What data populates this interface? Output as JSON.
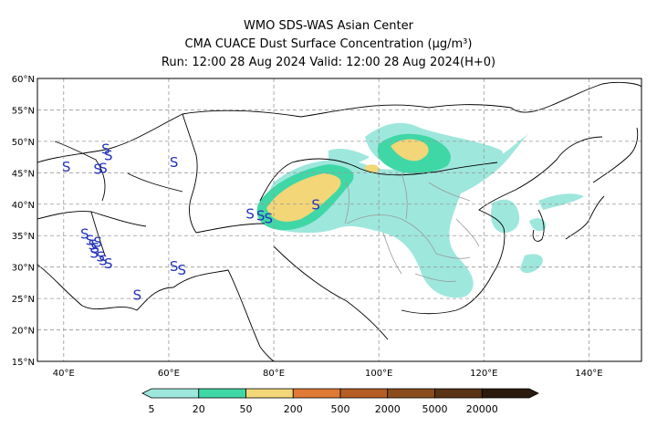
{
  "header": {
    "line1": "WMO SDS-WAS Asian Center",
    "line2": "CMA CUACE Dust Surface Concentration (μg/m³)",
    "line3": "Run: 12:00 28 Aug 2024    Valid: 12:00 28 Aug 2024(H+0)"
  },
  "map": {
    "lon_range": [
      35,
      150
    ],
    "lat_range": [
      15,
      60
    ],
    "lon_ticks": [
      {
        "value": 40,
        "label": "40°E"
      },
      {
        "value": 60,
        "label": "60°E"
      },
      {
        "value": 80,
        "label": "80°E"
      },
      {
        "value": 100,
        "label": "100°E"
      },
      {
        "value": 120,
        "label": "120°E"
      },
      {
        "value": 140,
        "label": "140°E"
      }
    ],
    "lat_ticks": [
      {
        "value": 15,
        "label": "15°N"
      },
      {
        "value": 20,
        "label": "20°N"
      },
      {
        "value": 25,
        "label": "25°N"
      },
      {
        "value": 30,
        "label": "30°N"
      },
      {
        "value": 35,
        "label": "35°N"
      },
      {
        "value": 40,
        "label": "40°N"
      },
      {
        "value": 45,
        "label": "45°N"
      },
      {
        "value": 50,
        "label": "50°N"
      },
      {
        "value": 55,
        "label": "55°N"
      },
      {
        "value": 60,
        "label": "60°N"
      }
    ],
    "grid_lines": true,
    "station_symbol": "S",
    "stations": [
      {
        "lon": 40.5,
        "lat": 45.2
      },
      {
        "lon": 46.5,
        "lat": 44.8
      },
      {
        "lon": 47.5,
        "lat": 45.0
      },
      {
        "lon": 48.5,
        "lat": 47.0
      },
      {
        "lon": 48.0,
        "lat": 48.0
      },
      {
        "lon": 61.0,
        "lat": 45.9
      },
      {
        "lon": 44.0,
        "lat": 34.5
      },
      {
        "lon": 45.0,
        "lat": 33.5
      },
      {
        "lon": 45.5,
        "lat": 32.8
      },
      {
        "lon": 46.0,
        "lat": 32.3
      },
      {
        "lon": 46.5,
        "lat": 33.2
      },
      {
        "lon": 45.8,
        "lat": 31.5
      },
      {
        "lon": 47.5,
        "lat": 30.3
      },
      {
        "lon": 48.5,
        "lat": 29.8
      },
      {
        "lon": 47.0,
        "lat": 30.9
      },
      {
        "lon": 54.0,
        "lat": 24.8
      },
      {
        "lon": 61.0,
        "lat": 29.4
      },
      {
        "lon": 62.5,
        "lat": 28.8
      },
      {
        "lon": 75.5,
        "lat": 37.7
      },
      {
        "lon": 77.5,
        "lat": 37.4
      },
      {
        "lon": 79.0,
        "lat": 37.0
      },
      {
        "lon": 88.0,
        "lat": 39.2
      }
    ],
    "dust_colors": {
      "c5_20": "#9ee7dd",
      "c20_50": "#40d7a6",
      "c50_200": "#f2d677"
    }
  },
  "colorbar": {
    "colors": [
      "#9ee7dd",
      "#40d7a6",
      "#f2d677",
      "#df7a34",
      "#b45e24",
      "#8a4c1c",
      "#5a3315",
      "#2b1a0e"
    ],
    "labels": [
      "5",
      "20",
      "50",
      "200",
      "500",
      "2000",
      "5000",
      "20000"
    ]
  }
}
